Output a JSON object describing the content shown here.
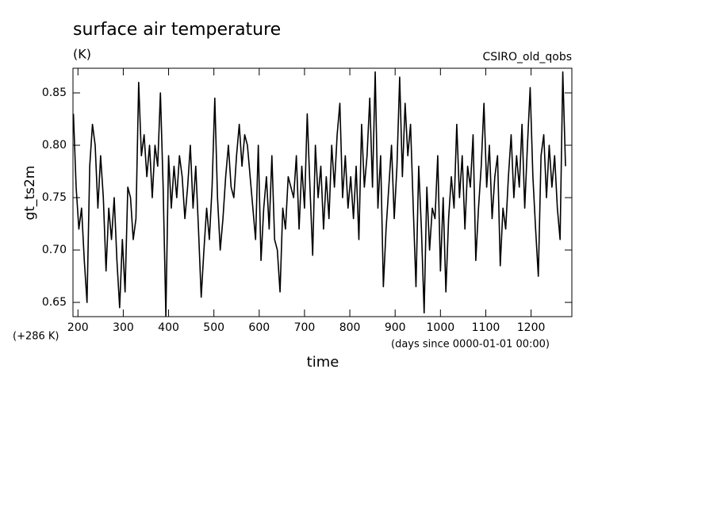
{
  "chart_data": {
    "type": "line",
    "title": "surface air temperature",
    "units": "(K)",
    "annotation": "CSIRO_old_qobs",
    "y_label": "gt_ts2m",
    "y_offset_label": "(+286 K)",
    "x_label": "time",
    "x_units": "(days since 0000-01-01 00:00)",
    "xlim": [
      189,
      1290
    ],
    "ylim": [
      0.6364,
      0.8735
    ],
    "xticks": [
      200,
      300,
      400,
      500,
      600,
      700,
      800,
      900,
      1000,
      1100,
      1200
    ],
    "yticks": [
      0.65,
      {
        "value": 0.7,
        "label": "0.70"
      },
      0.75,
      {
        "value": 0.8,
        "label": "0.80"
      },
      0.85
    ],
    "x": [
      190,
      196,
      202,
      208,
      214,
      220,
      226,
      232,
      238,
      244,
      250,
      256,
      262,
      268,
      274,
      280,
      286,
      292,
      298,
      304,
      310,
      316,
      322,
      328,
      334,
      340,
      346,
      352,
      358,
      364,
      370,
      376,
      382,
      388,
      394,
      400,
      406,
      412,
      418,
      424,
      430,
      436,
      442,
      448,
      454,
      460,
      466,
      472,
      478,
      484,
      490,
      496,
      502,
      508,
      514,
      520,
      526,
      532,
      538,
      544,
      550,
      556,
      562,
      568,
      574,
      580,
      586,
      592,
      598,
      604,
      610,
      616,
      622,
      628,
      634,
      640,
      646,
      652,
      658,
      664,
      670,
      676,
      682,
      688,
      694,
      700,
      706,
      712,
      718,
      724,
      730,
      736,
      742,
      748,
      754,
      760,
      766,
      772,
      778,
      784,
      790,
      796,
      802,
      808,
      814,
      820,
      826,
      832,
      838,
      844,
      850,
      856,
      862,
      868,
      874,
      880,
      886,
      892,
      898,
      904,
      910,
      916,
      922,
      928,
      934,
      940,
      946,
      952,
      958,
      964,
      970,
      976,
      982,
      988,
      994,
      1000,
      1006,
      1012,
      1018,
      1024,
      1030,
      1036,
      1042,
      1048,
      1054,
      1060,
      1066,
      1072,
      1078,
      1084,
      1090,
      1096,
      1102,
      1108,
      1114,
      1120,
      1126,
      1132,
      1138,
      1144,
      1150,
      1156,
      1162,
      1168,
      1174,
      1180,
      1186,
      1192,
      1198,
      1204,
      1210,
      1216,
      1222,
      1228,
      1234,
      1240,
      1246,
      1252,
      1258,
      1264,
      1270,
      1276
    ],
    "series": [
      {
        "color": "#000000",
        "values": [
          0.83,
          0.76,
          0.72,
          0.74,
          0.69,
          0.65,
          0.78,
          0.82,
          0.8,
          0.74,
          0.79,
          0.75,
          0.68,
          0.74,
          0.71,
          0.75,
          0.69,
          0.645,
          0.71,
          0.66,
          0.76,
          0.75,
          0.71,
          0.73,
          0.86,
          0.79,
          0.81,
          0.77,
          0.8,
          0.75,
          0.8,
          0.78,
          0.85,
          0.76,
          0.637,
          0.79,
          0.74,
          0.78,
          0.75,
          0.79,
          0.77,
          0.73,
          0.76,
          0.8,
          0.74,
          0.78,
          0.72,
          0.655,
          0.7,
          0.74,
          0.71,
          0.76,
          0.845,
          0.75,
          0.7,
          0.73,
          0.77,
          0.8,
          0.76,
          0.75,
          0.79,
          0.82,
          0.78,
          0.81,
          0.8,
          0.77,
          0.74,
          0.71,
          0.8,
          0.69,
          0.74,
          0.77,
          0.72,
          0.79,
          0.71,
          0.7,
          0.66,
          0.74,
          0.72,
          0.77,
          0.76,
          0.75,
          0.79,
          0.72,
          0.78,
          0.74,
          0.83,
          0.76,
          0.695,
          0.8,
          0.75,
          0.78,
          0.72,
          0.77,
          0.73,
          0.8,
          0.76,
          0.81,
          0.84,
          0.75,
          0.79,
          0.74,
          0.77,
          0.73,
          0.78,
          0.71,
          0.82,
          0.76,
          0.79,
          0.845,
          0.76,
          0.87,
          0.74,
          0.79,
          0.665,
          0.72,
          0.76,
          0.8,
          0.73,
          0.78,
          0.865,
          0.77,
          0.84,
          0.79,
          0.82,
          0.74,
          0.665,
          0.78,
          0.72,
          0.64,
          0.76,
          0.7,
          0.74,
          0.73,
          0.79,
          0.68,
          0.75,
          0.66,
          0.73,
          0.77,
          0.74,
          0.82,
          0.75,
          0.79,
          0.72,
          0.78,
          0.76,
          0.81,
          0.69,
          0.74,
          0.78,
          0.84,
          0.76,
          0.8,
          0.73,
          0.77,
          0.79,
          0.685,
          0.74,
          0.72,
          0.77,
          0.81,
          0.75,
          0.79,
          0.76,
          0.82,
          0.74,
          0.8,
          0.855,
          0.77,
          0.72,
          0.675,
          0.79,
          0.81,
          0.75,
          0.8,
          0.76,
          0.79,
          0.74,
          0.71,
          0.87,
          0.78
        ]
      }
    ]
  }
}
